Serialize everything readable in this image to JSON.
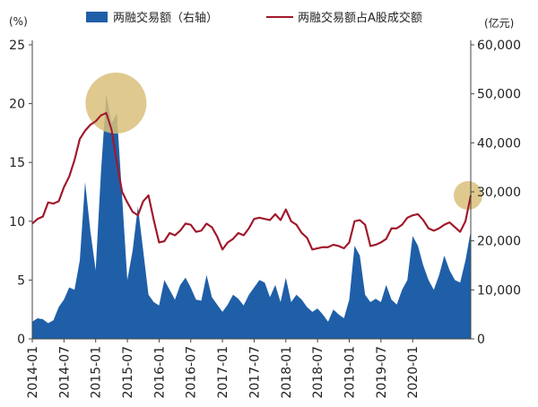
{
  "chart_data": {
    "type": "area+line",
    "left_unit": "(%)",
    "right_unit": "(亿元)",
    "legend": [
      {
        "label": "两融交易额（右轴）",
        "type": "area",
        "color": "#1f5fa8"
      },
      {
        "label": "两融交易额占A股成交额",
        "type": "line",
        "color": "#a0192c"
      }
    ],
    "left_axis": {
      "min": 0,
      "max": 25,
      "ticks": [
        "0",
        "5",
        "10",
        "15",
        "20",
        "25"
      ]
    },
    "right_axis": {
      "min": 0,
      "max": 60000,
      "ticks": [
        "0",
        "10,000",
        "20,000",
        "30,000",
        "40,000",
        "50,000",
        "60,000"
      ]
    },
    "x_ticks": [
      "2014-01",
      "2014-07",
      "2015-01",
      "2015-07",
      "2016-01",
      "2016-07",
      "2017-01",
      "2017-07",
      "2018-01",
      "2018-07",
      "2019-01",
      "2019-07",
      "2020-01"
    ],
    "x_ticks_month_index": [
      0,
      6,
      12,
      18,
      24,
      30,
      36,
      42,
      48,
      54,
      60,
      66,
      72
    ],
    "n_points": 84,
    "series": [
      {
        "name": "两融交易额（右轴）",
        "axis": "right",
        "values": [
          3500,
          4200,
          4000,
          3200,
          3800,
          6500,
          8000,
          10500,
          10000,
          16000,
          32000,
          22000,
          14000,
          34000,
          50000,
          44000,
          46000,
          29000,
          12000,
          18000,
          27000,
          18000,
          9000,
          7500,
          6800,
          12000,
          10000,
          8000,
          11000,
          12500,
          10500,
          8000,
          7800,
          13000,
          8500,
          7000,
          5500,
          7000,
          9000,
          8200,
          6800,
          9000,
          10500,
          12000,
          11500,
          8500,
          11000,
          7500,
          12500,
          7500,
          9000,
          8000,
          6500,
          5500,
          6200,
          5000,
          3500,
          6000,
          5000,
          4200,
          8000,
          19000,
          17000,
          9000,
          7500,
          8200,
          7500,
          11000,
          8000,
          7000,
          10000,
          12000,
          21000,
          19000,
          15000,
          12000,
          10000,
          13000,
          17000,
          14000,
          12000,
          11500,
          16000,
          22000
        ]
      },
      {
        "name": "两融交易额占A股成交额",
        "axis": "left",
        "values": [
          9.8,
          10.2,
          10.4,
          11.6,
          11.5,
          11.7,
          12.9,
          13.8,
          15.2,
          17.0,
          17.7,
          18.2,
          18.5,
          19.0,
          19.2,
          17.8,
          15.0,
          12.5,
          11.6,
          10.8,
          10.5,
          11.7,
          12.2,
          10.1,
          8.2,
          8.3,
          9.0,
          8.8,
          9.2,
          9.8,
          9.7,
          9.1,
          9.2,
          9.8,
          9.5,
          8.7,
          7.6,
          8.2,
          8.5,
          9.0,
          8.8,
          9.4,
          10.2,
          10.3,
          10.2,
          10.1,
          10.6,
          10.1,
          11.0,
          10.0,
          9.7,
          9.0,
          8.6,
          7.6,
          7.7,
          7.8,
          7.8,
          8.0,
          7.9,
          7.7,
          8.2,
          10.0,
          10.1,
          9.7,
          7.9,
          8.0,
          8.2,
          8.5,
          9.4,
          9.4,
          9.7,
          10.3,
          10.5,
          10.6,
          10.1,
          9.4,
          9.2,
          9.4,
          9.7,
          9.9,
          9.5,
          9.1,
          10.0,
          12.2
        ]
      }
    ],
    "highlights": [
      {
        "series": "两融交易额（右轴）",
        "at_index": 15,
        "color": "#d9c07a"
      },
      {
        "series": "两融交易额占A股成交额",
        "at_index": 83,
        "color": "#d9c07a"
      }
    ]
  }
}
